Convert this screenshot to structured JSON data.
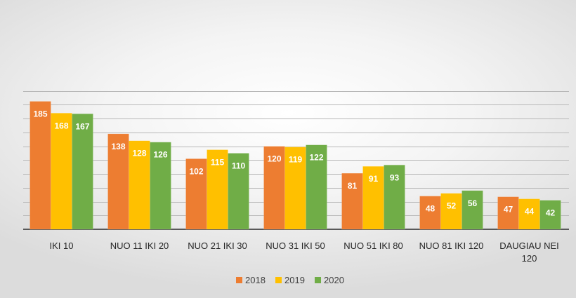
{
  "chart_data": {
    "type": "bar",
    "categories": [
      [
        "IKI 10"
      ],
      [
        "NUO 11 IKI 20"
      ],
      [
        "NUO 21 IKI 30"
      ],
      [
        "NUO 31 IKI 50"
      ],
      [
        "NUO 51 IKI 80"
      ],
      [
        "NUO 81 IKI 120"
      ],
      [
        "DAUGIAU NEI",
        "120"
      ]
    ],
    "series": [
      {
        "name": "2018",
        "color": "#ED7D31",
        "values": [
          185,
          138,
          102,
          120,
          81,
          48,
          47
        ]
      },
      {
        "name": "2019",
        "color": "#FFC000",
        "values": [
          168,
          128,
          115,
          119,
          91,
          52,
          44
        ]
      },
      {
        "name": "2020",
        "color": "#70AD47",
        "values": [
          167,
          126,
          110,
          122,
          93,
          56,
          42
        ]
      }
    ],
    "ylim": [
      0,
      200
    ],
    "y_gridline_step": 20,
    "grid": true,
    "data_labels": true,
    "legend_position": "bottom"
  }
}
